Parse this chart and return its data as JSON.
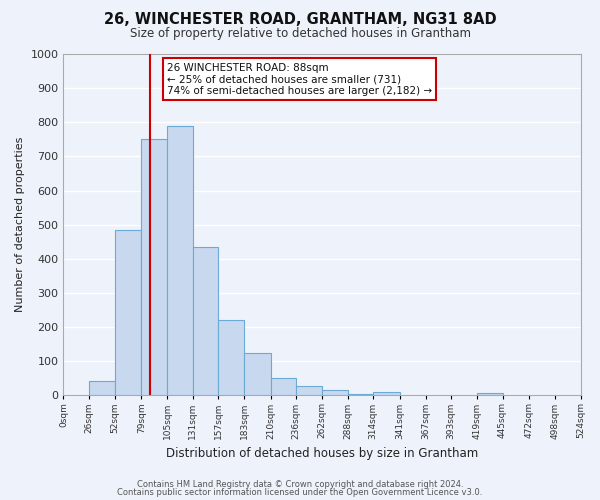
{
  "title": "26, WINCHESTER ROAD, GRANTHAM, NG31 8AD",
  "subtitle": "Size of property relative to detached houses in Grantham",
  "xlabel": "Distribution of detached houses by size in Grantham",
  "ylabel": "Number of detached properties",
  "bar_edges": [
    0,
    26,
    52,
    79,
    105,
    131,
    157,
    183,
    210,
    236,
    262,
    288,
    314,
    341,
    367,
    393,
    419,
    445,
    472,
    498,
    524
  ],
  "bar_heights": [
    0,
    42,
    485,
    750,
    790,
    435,
    220,
    125,
    52,
    28,
    15,
    5,
    10,
    0,
    0,
    0,
    8,
    0,
    0,
    0
  ],
  "bar_color": "#c8d8ef",
  "bar_edge_color": "#6aaad4",
  "property_size": 88,
  "vline_color": "#cc0000",
  "annotation_text": "26 WINCHESTER ROAD: 88sqm\n← 25% of detached houses are smaller (731)\n74% of semi-detached houses are larger (2,182) →",
  "annotation_box_facecolor": "#ffffff",
  "annotation_box_edgecolor": "#cc0000",
  "ylim": [
    0,
    1000
  ],
  "yticks": [
    0,
    100,
    200,
    300,
    400,
    500,
    600,
    700,
    800,
    900,
    1000
  ],
  "fig_facecolor": "#eef2fb",
  "ax_facecolor": "#eef2fb",
  "grid_color": "#ffffff",
  "title_fontsize": 10.5,
  "subtitle_fontsize": 8.5,
  "footer_line1": "Contains HM Land Registry data © Crown copyright and database right 2024.",
  "footer_line2": "Contains public sector information licensed under the Open Government Licence v3.0."
}
